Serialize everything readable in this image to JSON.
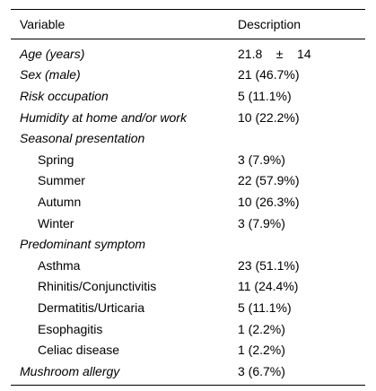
{
  "table": {
    "headers": {
      "variable": "Variable",
      "description": "Description"
    },
    "rows": [
      {
        "variable": "Age (years)",
        "description": "21.8    ±    14",
        "style": "italic"
      },
      {
        "variable": "Sex (male)",
        "description": "21 (46.7%)",
        "style": "italic"
      },
      {
        "variable": "Risk occupation",
        "description": "5 (11.1%)",
        "style": "italic"
      },
      {
        "variable": "Humidity at home and/or work",
        "description": "10 (22.2%)",
        "style": "italic"
      },
      {
        "variable": "Seasonal presentation",
        "description": "",
        "style": "italic"
      },
      {
        "variable": "Spring",
        "description": "3 (7.9%)",
        "style": "indent"
      },
      {
        "variable": "Summer",
        "description": "22 (57.9%)",
        "style": "indent"
      },
      {
        "variable": "Autumn",
        "description": "10 (26.3%)",
        "style": "indent"
      },
      {
        "variable": "Winter",
        "description": "3 (7.9%)",
        "style": "indent"
      },
      {
        "variable": "Predominant symptom",
        "description": "",
        "style": "italic"
      },
      {
        "variable": "Asthma",
        "description": "23 (51.1%)",
        "style": "indent"
      },
      {
        "variable": "Rhinitis/Conjunctivitis",
        "description": "11 (24.4%)",
        "style": "indent"
      },
      {
        "variable": "Dermatitis/Urticaria",
        "description": "5 (11.1%)",
        "style": "indent"
      },
      {
        "variable": "Esophagitis",
        "description": "1 (2.2%)",
        "style": "indent"
      },
      {
        "variable": "Celiac disease",
        "description": "1 (2.2%)",
        "style": "indent"
      },
      {
        "variable": "Mushroom allergy",
        "description": "3 (6.7%)",
        "style": "italic"
      }
    ]
  }
}
